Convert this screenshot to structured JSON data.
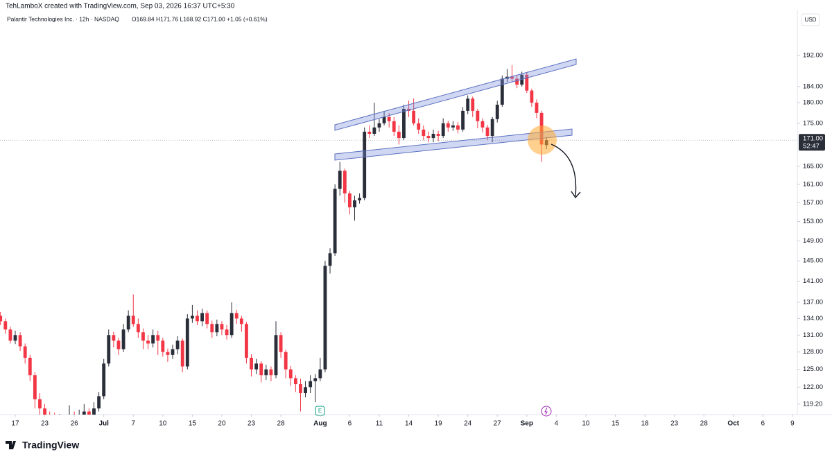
{
  "header": {
    "credit": "TehLamboX created with TradingView.com, Sep 03, 2026 16:37 UTC+5:30",
    "symbol": "Palantir Technologies Inc. · 12h · NASDAQ",
    "ohlc": "O169.84 H171.76 L168.92 C171.00 +1.05 (+0.61%)"
  },
  "currency": "USD",
  "brand": "TradingView",
  "chart_data": {
    "type": "candlestick",
    "log_scale": true,
    "grid": false,
    "up_color": "#2a2e39",
    "down_color": "#f23645",
    "open": [
      134.5,
      133.5,
      132,
      130,
      131,
      129,
      127,
      124,
      120,
      118.5,
      117.5,
      117,
      116.5,
      117,
      116.8,
      117.5,
      117,
      117.5,
      118,
      117.5,
      118.5,
      120.5,
      126,
      131,
      130,
      128.5,
      132,
      134.5,
      133,
      131.5,
      130,
      129.5,
      131,
      130,
      128,
      127.5,
      128.5,
      130,
      125.5,
      134,
      134.5,
      133.5,
      135,
      133,
      131.5,
      133,
      132,
      131,
      135,
      134,
      133,
      127,
      125,
      126,
      124,
      125,
      124,
      131,
      128,
      125,
      123.5,
      122.5,
      121,
      122,
      123,
      123.5,
      125,
      144,
      146.5,
      160,
      164,
      159,
      156,
      157.5,
      158,
      173,
      172.5,
      174,
      175,
      176.5,
      175.5,
      173,
      171.5,
      178.5,
      178,
      175,
      173.5,
      172,
      171.5,
      172.5,
      172,
      175,
      174,
      174.5,
      173.5,
      178,
      181,
      178,
      175.5,
      174,
      172,
      176,
      179.5,
      186,
      186.5,
      186,
      184.5,
      187,
      183,
      180,
      177.5,
      169.84
    ],
    "high": [
      135.2,
      134,
      132.5,
      131.8,
      131.5,
      129.5,
      127.5,
      124.5,
      121,
      119.2,
      118,
      117.8,
      117.6,
      117.5,
      119,
      118,
      118.3,
      119.2,
      118.5,
      119.5,
      121.2,
      126.8,
      132,
      131.6,
      130.5,
      133,
      135.5,
      138.5,
      134,
      132.2,
      131,
      132,
      131.8,
      130.5,
      128.6,
      129.3,
      130.8,
      130.4,
      134.8,
      136.5,
      135.5,
      135.8,
      135.5,
      133.6,
      133.8,
      133.5,
      132.8,
      137,
      135.6,
      134.5,
      133.4,
      127.6,
      126.8,
      126.4,
      125.8,
      125.5,
      133.5,
      131.5,
      128.4,
      125.6,
      124,
      123.4,
      123,
      124,
      124.2,
      127,
      145,
      147.5,
      161,
      166,
      164.5,
      159.5,
      158.5,
      159,
      174,
      174.5,
      180,
      176,
      178,
      177.5,
      176.5,
      174.5,
      179.5,
      180.5,
      181,
      176.2,
      174.5,
      173,
      173.5,
      173.2,
      176.2,
      175.6,
      175.5,
      175.3,
      178.9,
      181.8,
      181.5,
      178.5,
      176.2,
      174.6,
      176.5,
      180.5,
      186.8,
      188.5,
      189.5,
      186.8,
      187.8,
      187.5,
      183.5,
      180.8,
      178,
      171.76
    ],
    "low": [
      132.8,
      131.2,
      129.5,
      129.4,
      128.2,
      126,
      123,
      118.5,
      117.5,
      116.5,
      116,
      115.8,
      115.9,
      116,
      116.3,
      116.2,
      116.4,
      116.8,
      116.6,
      117,
      118,
      120,
      125.5,
      128.8,
      127.5,
      128,
      131.5,
      132.5,
      130.5,
      128.5,
      128.5,
      128.8,
      127.5,
      127.2,
      126.3,
      126.8,
      127.6,
      124.5,
      125,
      133.2,
      132.8,
      132.6,
      132.2,
      130.5,
      130.8,
      131,
      130.2,
      130.5,
      133,
      131.6,
      126,
      123.8,
      124.2,
      122.8,
      123.2,
      123,
      123.5,
      127,
      123.5,
      122.2,
      121.2,
      118,
      120.3,
      121,
      119.5,
      123,
      124.5,
      142.5,
      146,
      158.5,
      157,
      154.5,
      153.2,
      156.8,
      157.5,
      171.5,
      172,
      173,
      174.5,
      174,
      172,
      170,
      171,
      176.5,
      174.5,
      172.5,
      171,
      170.5,
      170.5,
      170.8,
      171.5,
      173,
      173.2,
      172.6,
      173,
      177.2,
      176.5,
      173.8,
      172.8,
      171,
      170.5,
      175.2,
      179,
      185.2,
      185.3,
      183.6,
      184,
      182.4,
      179,
      176.2,
      166,
      168.92
    ],
    "close": [
      133.5,
      132,
      130,
      131,
      129,
      127,
      124,
      120,
      118.5,
      117.5,
      117,
      116.5,
      117,
      116.8,
      117.5,
      117,
      117.5,
      118,
      117.5,
      118.5,
      120.5,
      126,
      131,
      130,
      128.5,
      132,
      134.5,
      133,
      131.5,
      130,
      129.5,
      131,
      130,
      128,
      127.5,
      128.5,
      130,
      125.5,
      134,
      134.5,
      133.5,
      135,
      133,
      131.5,
      133,
      132,
      131,
      135,
      134,
      133,
      127,
      125,
      126,
      124,
      125,
      124,
      131,
      128,
      125,
      123.5,
      122.5,
      121,
      122,
      123,
      123.5,
      125,
      144,
      146.5,
      160,
      164,
      159,
      156,
      157.5,
      158,
      173,
      172.5,
      174,
      175,
      176.5,
      175.5,
      173,
      171.5,
      178.5,
      178,
      175,
      173.5,
      172,
      171.5,
      172.5,
      172,
      175,
      174,
      174.5,
      173.5,
      178,
      181,
      178,
      175.5,
      174,
      172,
      176,
      179.5,
      186,
      186.5,
      186,
      184.5,
      187,
      183,
      180,
      177.5,
      170,
      171.0
    ],
    "xlim": [
      -0.1,
      162
    ],
    "xticks": [
      {
        "value": 3,
        "label": "17"
      },
      {
        "value": 9,
        "label": "23"
      },
      {
        "value": 15,
        "label": "26"
      },
      {
        "value": 21,
        "label": "Jul"
      },
      {
        "value": 27,
        "label": "7"
      },
      {
        "value": 33,
        "label": "10"
      },
      {
        "value": 39,
        "label": "15"
      },
      {
        "value": 45,
        "label": "20"
      },
      {
        "value": 51,
        "label": "23"
      },
      {
        "value": 57,
        "label": "28"
      },
      {
        "value": 65,
        "label": "Aug"
      },
      {
        "value": 71,
        "label": "6"
      },
      {
        "value": 77,
        "label": "11"
      },
      {
        "value": 83,
        "label": "14"
      },
      {
        "value": 89,
        "label": "19"
      },
      {
        "value": 95,
        "label": "24"
      },
      {
        "value": 101,
        "label": "27"
      },
      {
        "value": 107,
        "label": "Sep"
      },
      {
        "value": 113,
        "label": "4"
      },
      {
        "value": 119,
        "label": "10"
      },
      {
        "value": 125,
        "label": "15"
      },
      {
        "value": 131,
        "label": "18"
      },
      {
        "value": 137,
        "label": "23"
      },
      {
        "value": 143,
        "label": "28"
      },
      {
        "value": 149,
        "label": "Oct"
      },
      {
        "value": 155,
        "label": "6"
      },
      {
        "value": 161,
        "label": "9"
      }
    ],
    "ylim": [
      117.5,
      204.4
    ],
    "yticks": [
      {
        "value": 192,
        "label": "192.00"
      },
      {
        "value": 184,
        "label": "184.00"
      },
      {
        "value": 180,
        "label": "180.00"
      },
      {
        "value": 175,
        "label": "175.00"
      },
      {
        "value": 165,
        "label": "165.00"
      },
      {
        "value": 161,
        "label": "161.00"
      },
      {
        "value": 157,
        "label": "157.00"
      },
      {
        "value": 153,
        "label": "153.00"
      },
      {
        "value": 149,
        "label": "149.00"
      },
      {
        "value": 145,
        "label": "145.00"
      },
      {
        "value": 141,
        "label": "141.00"
      },
      {
        "value": 137,
        "label": "137.00"
      },
      {
        "value": 134,
        "label": "134.00"
      },
      {
        "value": 131,
        "label": "131.00"
      },
      {
        "value": 128,
        "label": "128.00"
      },
      {
        "value": 125,
        "label": "125.00"
      },
      {
        "value": 122,
        "label": "122.00"
      },
      {
        "value": 119.2,
        "label": "119.20"
      }
    ],
    "last_price": {
      "value": 171,
      "label": "171.00"
    },
    "countdown": "52:47"
  }
}
